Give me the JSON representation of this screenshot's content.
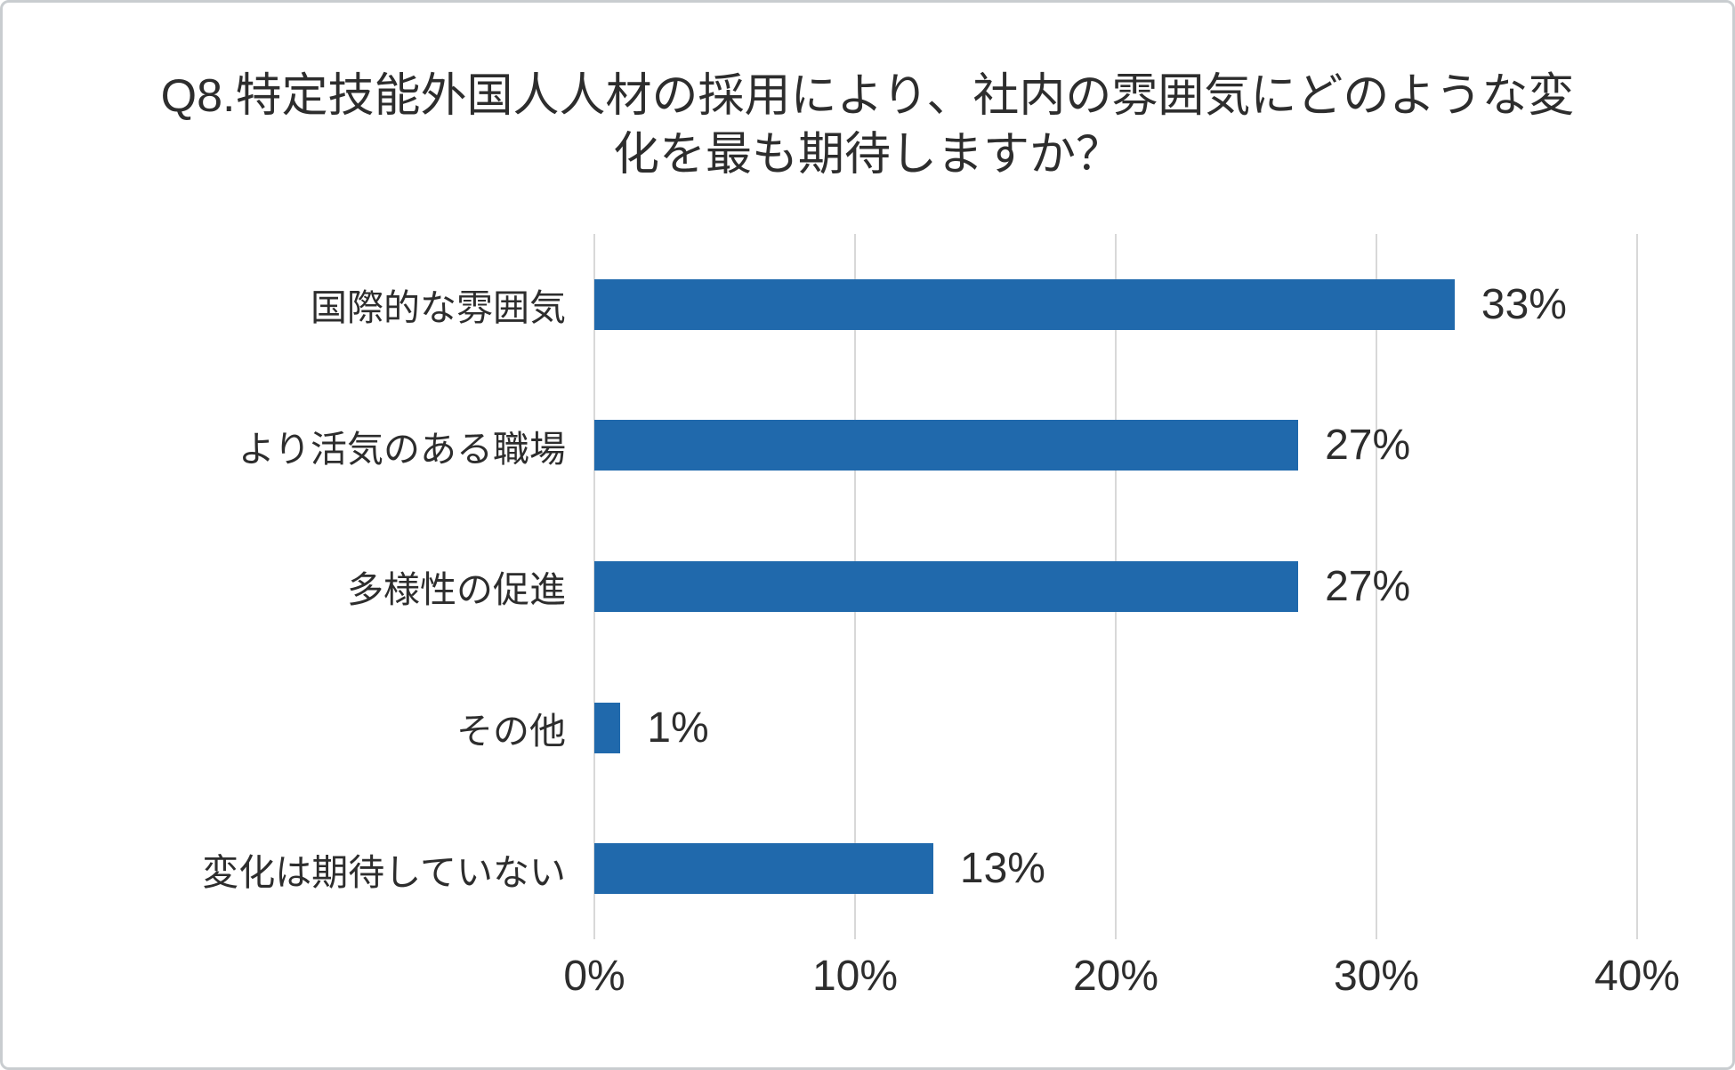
{
  "title": {
    "line1": "Q8.特定技能外国人人材の採用により、社内の雰囲気にどのような変",
    "line2": "化を最も期待しますか？"
  },
  "chart_data": {
    "type": "bar",
    "orientation": "horizontal",
    "title": "Q8.特定技能外国人人材の採用により、社内の雰囲気にどのような変化を最も期待しますか？",
    "categories": [
      "国際的な雰囲気",
      "より活気のある職場",
      "多様性の促進",
      "その他",
      "変化は期待していない"
    ],
    "values": [
      33,
      27,
      27,
      1,
      13
    ],
    "value_labels": [
      "33%",
      "27%",
      "27%",
      "1%",
      "13%"
    ],
    "x_axis": {
      "min": 0,
      "max": 40,
      "unit": "%",
      "ticks": [
        "0%",
        "10%",
        "20%",
        "30%",
        "40%"
      ]
    },
    "grid": "vertical-only",
    "legend": "none",
    "bar_color": "#2069AC",
    "gridline_color": "#d8d8d8",
    "text_color": "#2d2d2d"
  }
}
